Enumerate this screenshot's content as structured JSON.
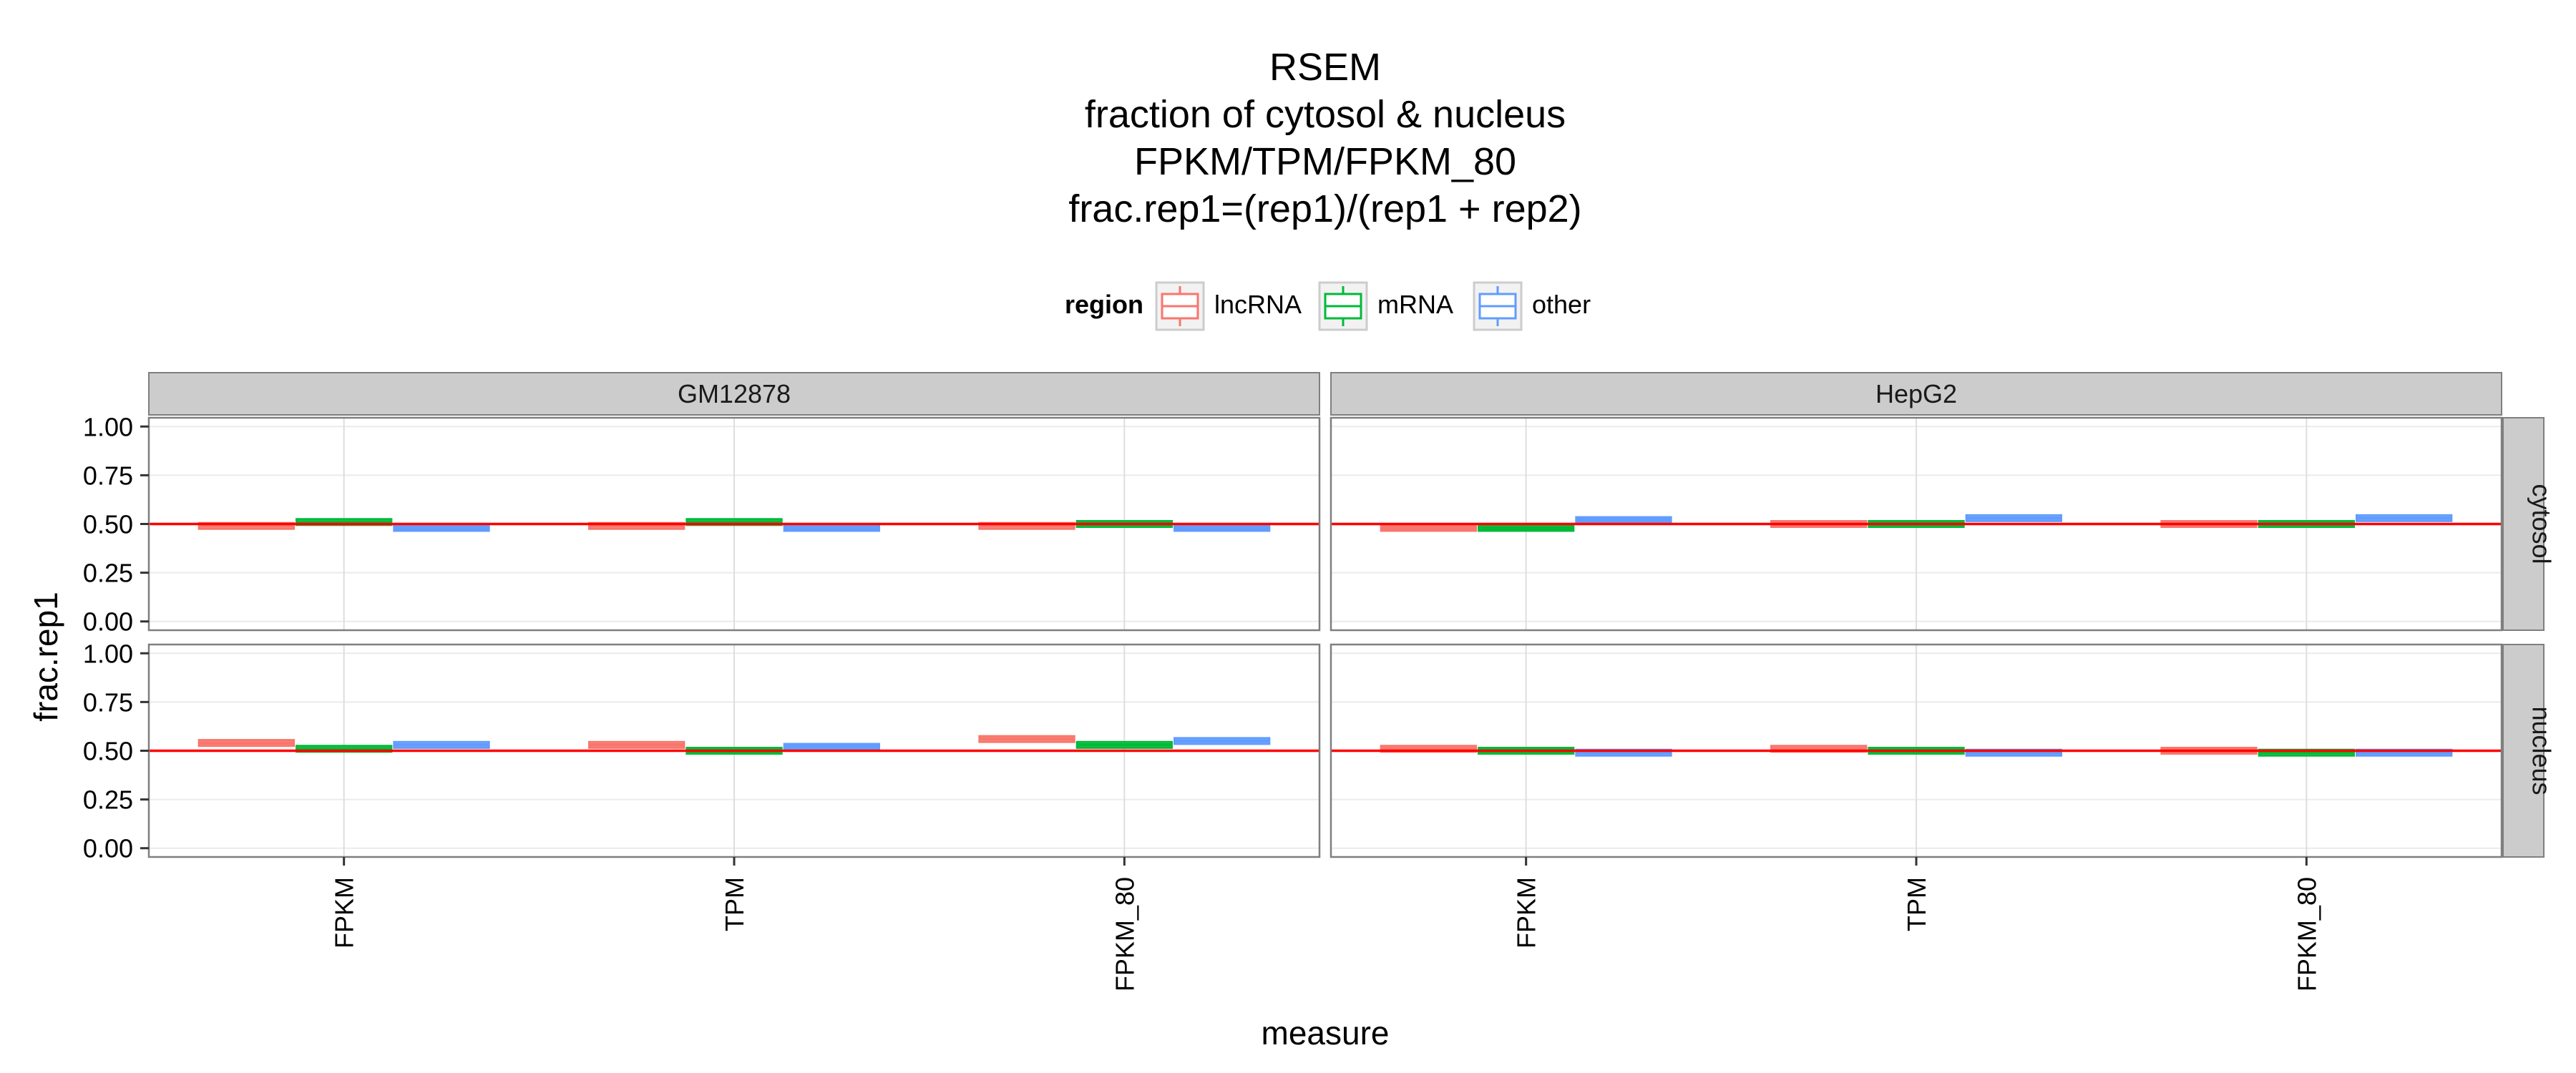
{
  "chart_data": {
    "type": "boxplot",
    "title": [
      "RSEM",
      "fraction of cytosol & nucleus",
      "FPKM/TPM/FPKM_80",
      "frac.rep1=(rep1)/(rep1 + rep2)"
    ],
    "xlabel": "measure",
    "ylabel": "frac.rep1",
    "ylim": [
      0,
      1
    ],
    "yticks": [
      "0.00",
      "0.25",
      "0.50",
      "0.75",
      "1.00"
    ],
    "categories": [
      "FPKM",
      "TPM",
      "FPKM_80"
    ],
    "reference_line": {
      "y": 0.5,
      "color": "#ff0000"
    },
    "legend": {
      "title": "region",
      "position": "top",
      "entries": [
        {
          "name": "lncRNA",
          "color": "#f8766d"
        },
        {
          "name": "mRNA",
          "color": "#00ba38"
        },
        {
          "name": "other",
          "color": "#619cff"
        }
      ]
    },
    "facet_cols": [
      "GM12878",
      "HepG2"
    ],
    "facet_rows": [
      "cytosol",
      "nucleus"
    ],
    "panels": [
      {
        "col": "GM12878",
        "row": "cytosol",
        "values": {
          "lncRNA": [
            0.49,
            0.49,
            0.49
          ],
          "mRNA": [
            0.51,
            0.51,
            0.5
          ],
          "other": [
            0.48,
            0.48,
            0.48
          ]
        }
      },
      {
        "col": "HepG2",
        "row": "cytosol",
        "values": {
          "lncRNA": [
            0.48,
            0.5,
            0.5
          ],
          "mRNA": [
            0.48,
            0.5,
            0.5
          ],
          "other": [
            0.52,
            0.53,
            0.53
          ]
        }
      },
      {
        "col": "GM12878",
        "row": "nucleus",
        "values": {
          "lncRNA": [
            0.54,
            0.53,
            0.56
          ],
          "mRNA": [
            0.51,
            0.5,
            0.53
          ],
          "other": [
            0.53,
            0.52,
            0.55
          ]
        }
      },
      {
        "col": "HepG2",
        "row": "nucleus",
        "values": {
          "lncRNA": [
            0.51,
            0.51,
            0.5
          ],
          "mRNA": [
            0.5,
            0.5,
            0.49
          ],
          "other": [
            0.49,
            0.49,
            0.49
          ]
        }
      }
    ]
  }
}
